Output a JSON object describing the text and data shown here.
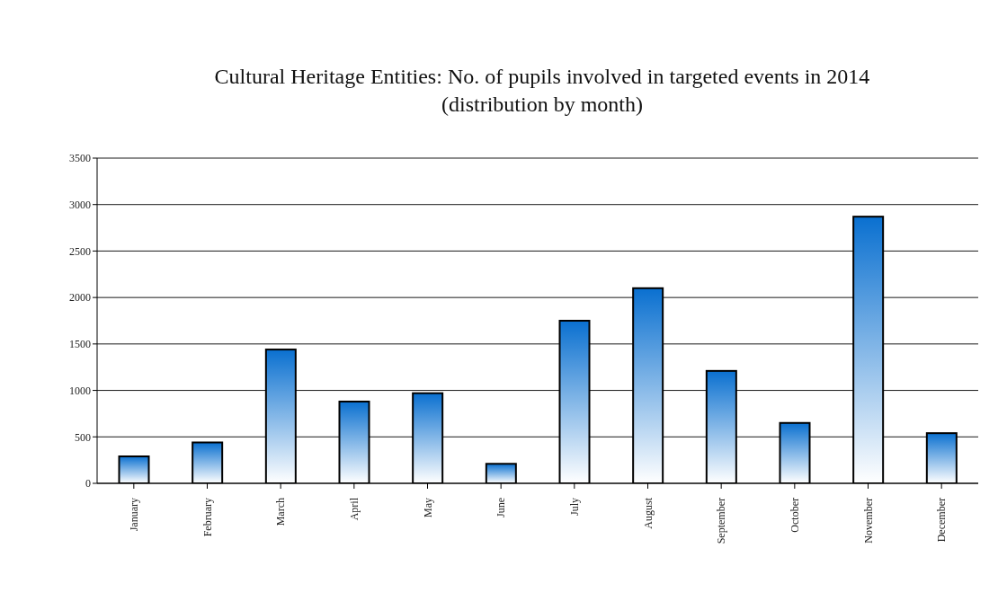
{
  "chart_data": {
    "type": "bar",
    "title": "Cultural Heritage Entities: No. of pupils involved in targeted events in 2014 (distribution by month)",
    "categories": [
      "January",
      "February",
      "March",
      "April",
      "May",
      "June",
      "July",
      "August",
      "September",
      "October",
      "November",
      "December"
    ],
    "values": [
      290,
      440,
      1440,
      880,
      970,
      210,
      1750,
      2100,
      1210,
      650,
      2870,
      540
    ],
    "color": "#0a70d0",
    "ylim": [
      0,
      3500
    ],
    "yticks": [
      0,
      500,
      1000,
      1500,
      2000,
      2500,
      3000,
      3500
    ],
    "grid": "y"
  }
}
